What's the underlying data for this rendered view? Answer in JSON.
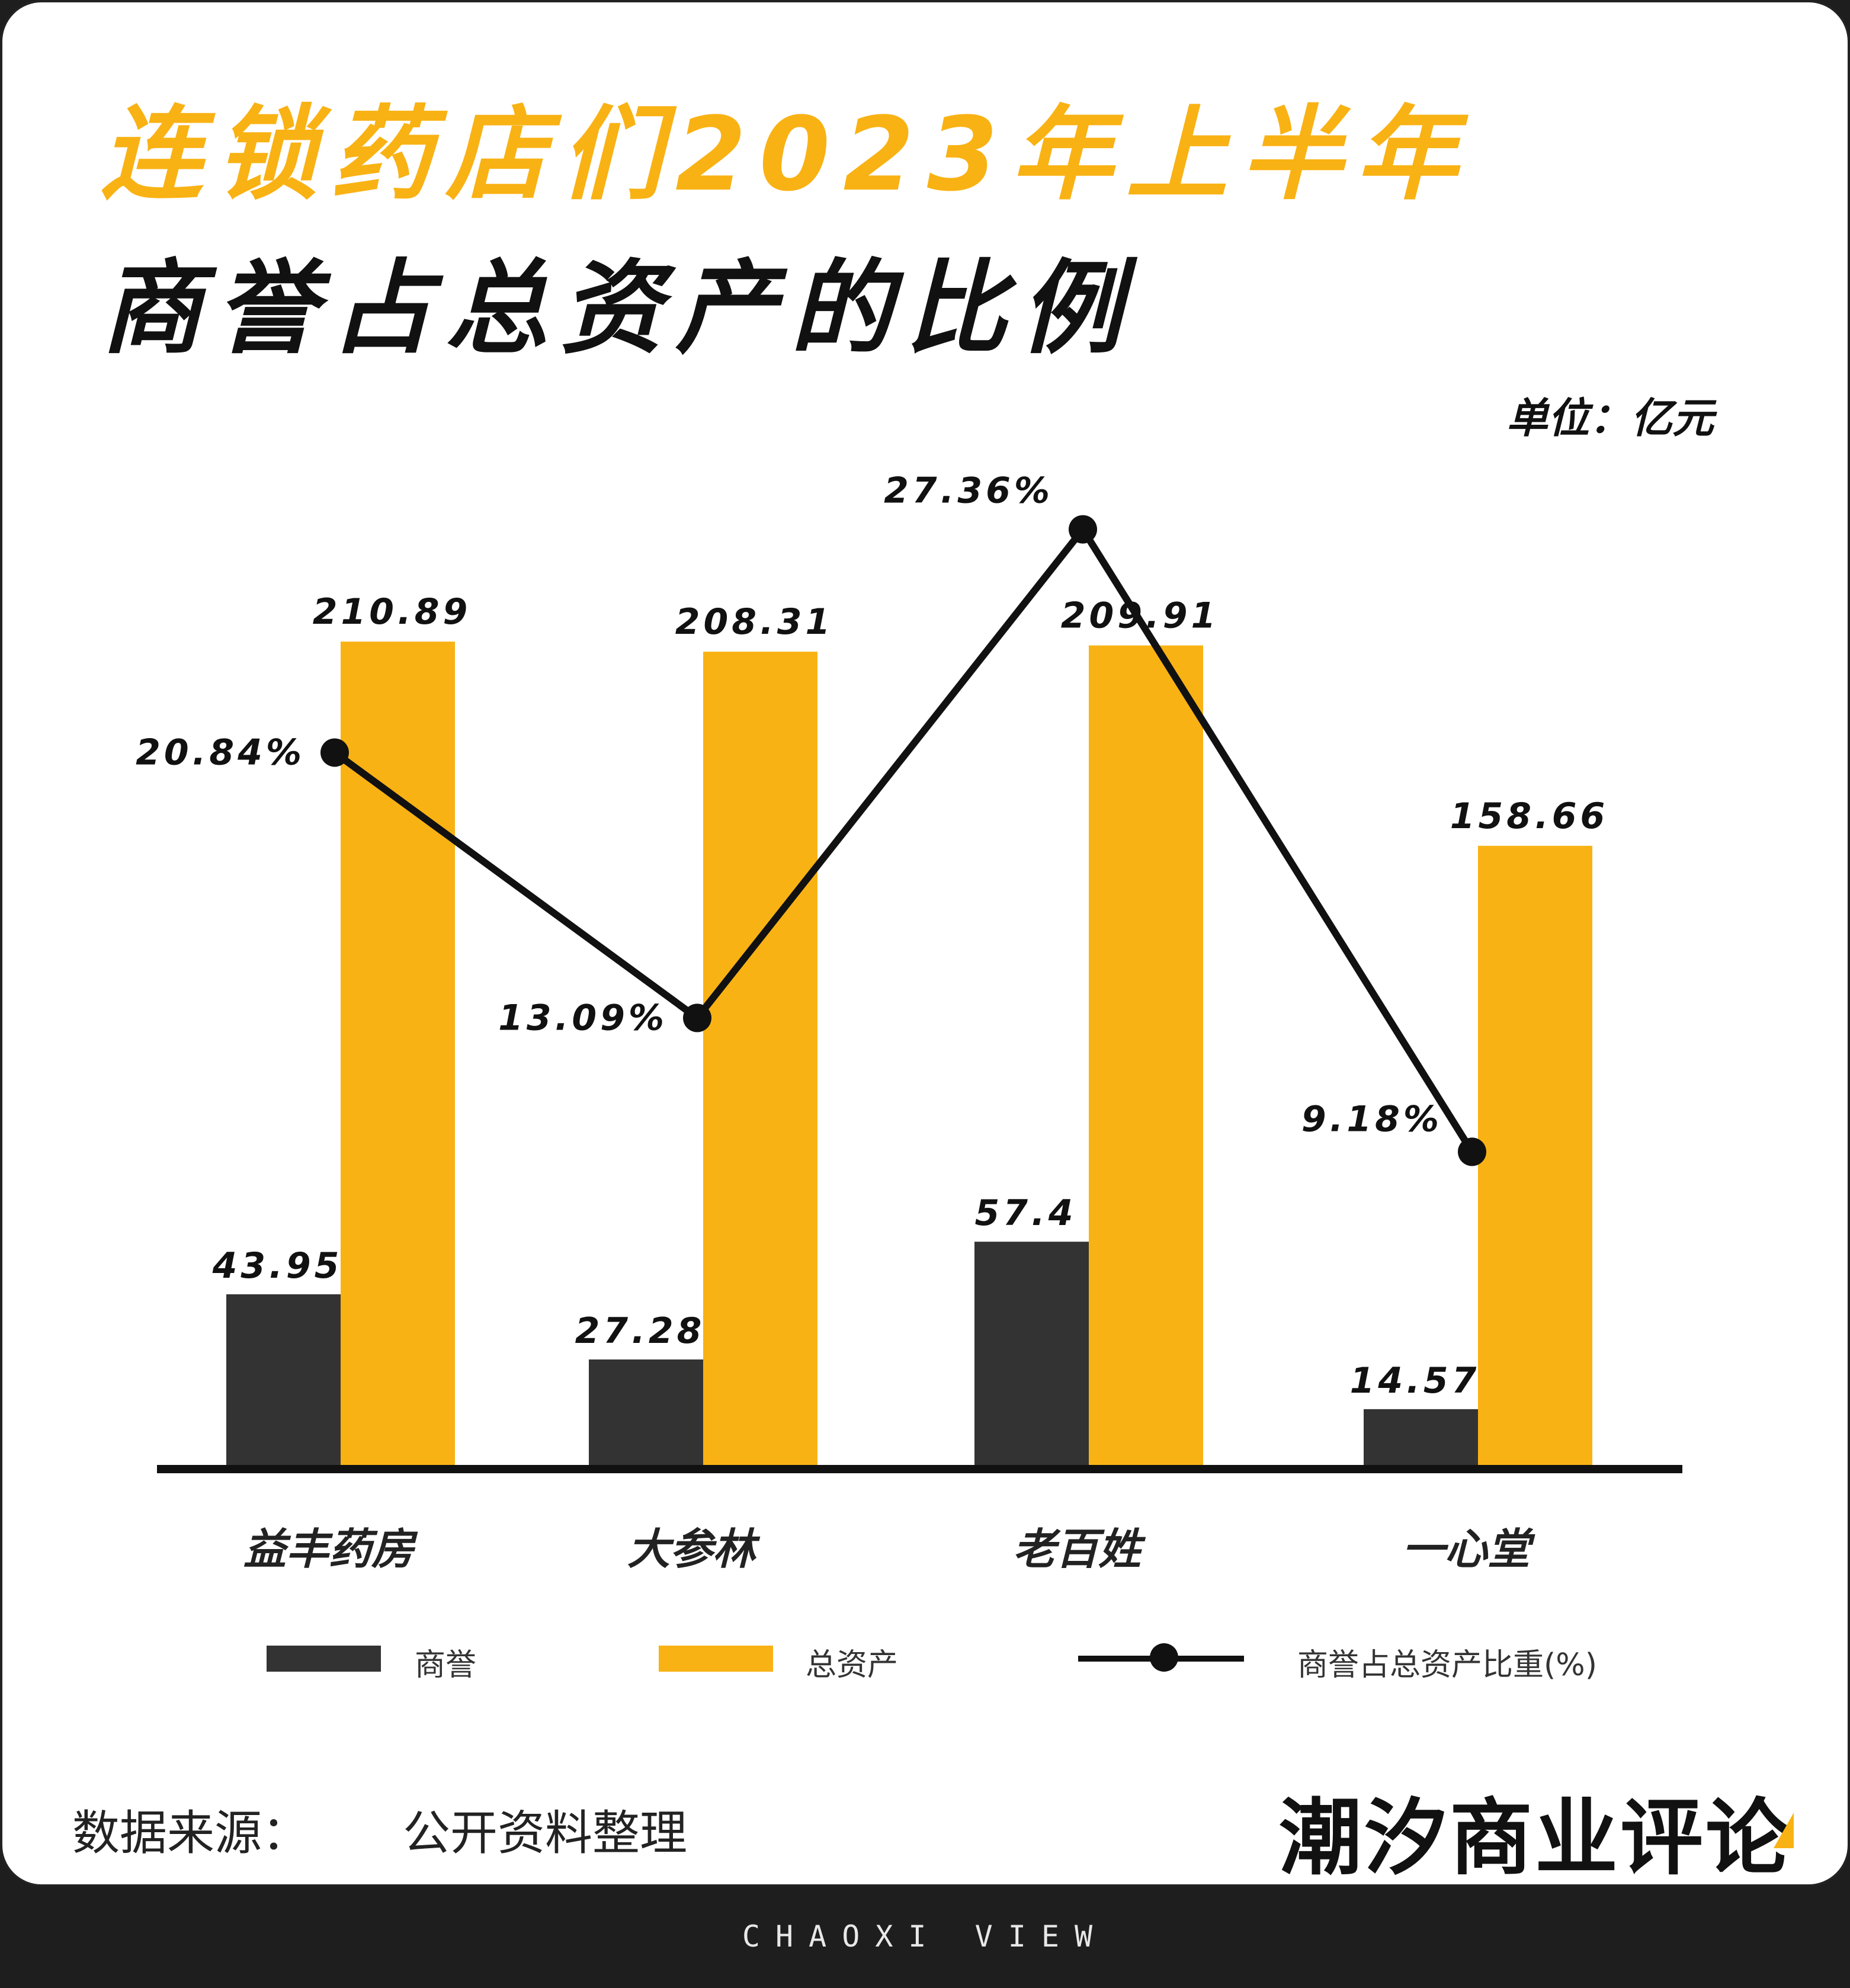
{
  "header": {
    "title_line1": "连锁药店们2023年上半年",
    "title_line2": "商誉占总资产的比例",
    "unit": "单位：亿元"
  },
  "colors": {
    "goodwill": "#333333",
    "assets": "#F9B214",
    "line": "#111111",
    "title_accent": "#F9B214"
  },
  "chart_data": {
    "type": "bar",
    "categories": [
      "益丰药房",
      "大参林",
      "老百姓",
      "一心堂"
    ],
    "series": [
      {
        "name": "商誉",
        "type": "bar",
        "values": [
          43.95,
          27.28,
          57.4,
          14.57
        ],
        "labels": [
          "43.95",
          "27.28",
          "57.4",
          "14.57"
        ]
      },
      {
        "name": "总资产",
        "type": "bar",
        "values": [
          210.89,
          208.31,
          209.91,
          158.66
        ],
        "labels": [
          "210.89",
          "208.31",
          "209.91",
          "158.66"
        ]
      },
      {
        "name": "商誉占总资产比重(%)",
        "type": "line",
        "values": [
          20.84,
          13.09,
          27.36,
          9.18
        ],
        "labels": [
          "20.84%",
          "13.09%",
          "27.36%",
          "9.18%"
        ]
      }
    ],
    "legend_position": "bottom",
    "grid": false
  },
  "legend": {
    "goodwill": "商誉",
    "assets": "总资产",
    "ratio": "商誉占总资产比重(%)"
  },
  "source": {
    "label": "数据来源：",
    "value": "公开资料整理"
  },
  "brand": "潮汐商业评论",
  "footer": "CHAOXI VIEW"
}
